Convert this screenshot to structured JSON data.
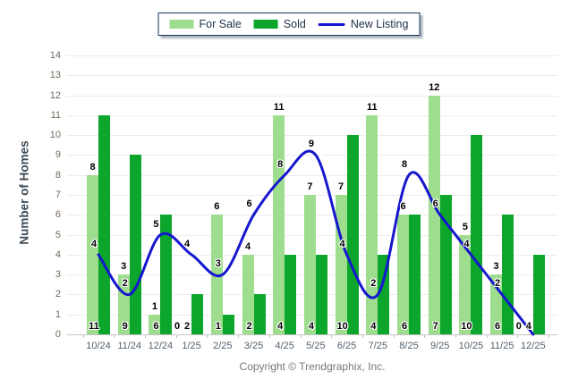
{
  "legend": {
    "items": [
      {
        "label": "For Sale",
        "color": "#9EDD8E",
        "swatch": "box"
      },
      {
        "label": "Sold",
        "color": "#0CA62C",
        "swatch": "box"
      },
      {
        "label": "New Listing",
        "color": "#1617CE",
        "swatch": "line"
      }
    ]
  },
  "chart_data": {
    "type": "bar",
    "categories": [
      "10/24",
      "11/24",
      "12/24",
      "1/25",
      "2/25",
      "3/25",
      "4/25",
      "5/25",
      "6/25",
      "7/25",
      "8/25",
      "9/25",
      "10/25",
      "11/25",
      "12/25"
    ],
    "series": [
      {
        "name": "For Sale",
        "type": "bar",
        "color": "#9EDD8E",
        "values": [
          8,
          3,
          1,
          0,
          6,
          4,
          11,
          7,
          7,
          11,
          6,
          12,
          5,
          3,
          0
        ]
      },
      {
        "name": "Sold",
        "type": "bar",
        "color": "#0CA62C",
        "values": [
          11,
          9,
          6,
          2,
          1,
          2,
          4,
          4,
          10,
          4,
          6,
          7,
          10,
          6,
          4
        ]
      },
      {
        "name": "New Listing",
        "type": "line",
        "color": "#1617CE",
        "values": [
          4,
          2,
          5,
          4,
          3,
          6,
          8,
          9,
          4,
          2,
          8,
          6,
          4,
          2,
          0
        ]
      }
    ],
    "xlabel": "",
    "ylabel": "Number of Homes",
    "ylim": [
      0,
      14
    ],
    "ytick_step": 1,
    "grid": true,
    "legend_position": "top-center",
    "data_labels": true
  },
  "footer": {
    "copyright": "Copyright © Trendgraphix, Inc."
  }
}
